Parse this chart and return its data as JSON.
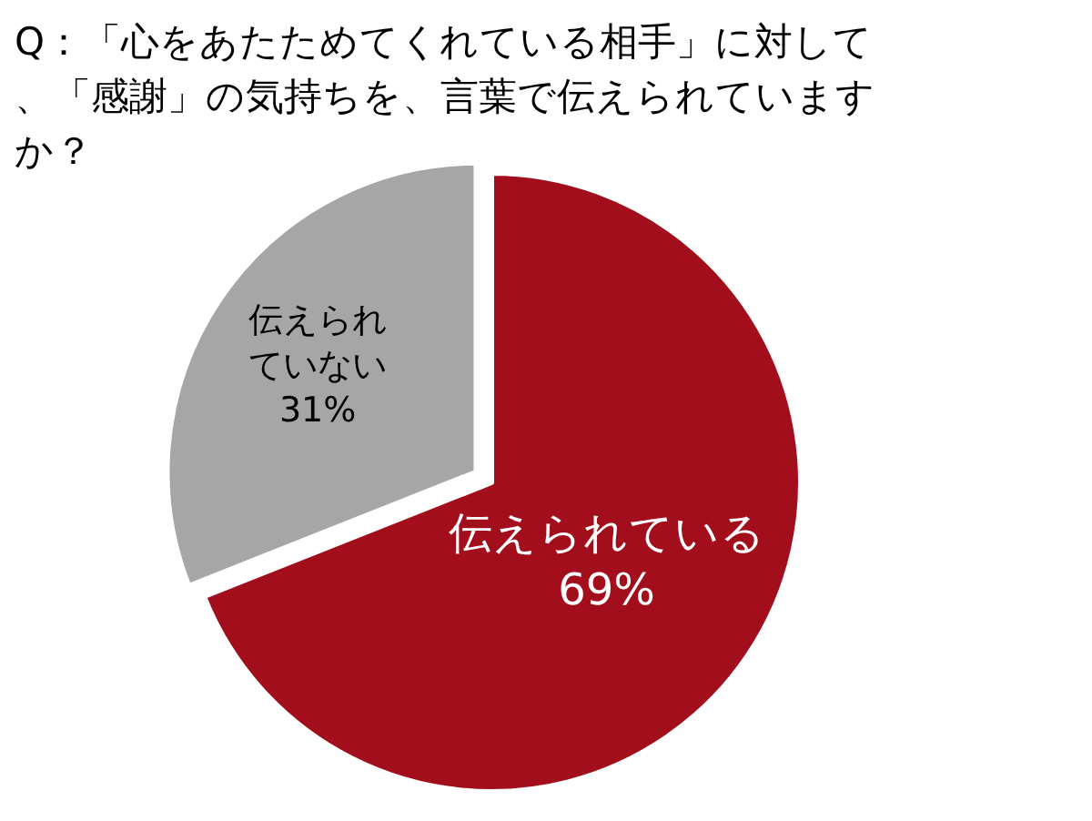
{
  "chart_data": {
    "type": "pie",
    "title": "Q：「心をあたためてくれている相手」に対して、「感謝」の気持ちを、言葉で伝えられていますか？",
    "categories": [
      "伝えられている",
      "伝えられていない"
    ],
    "values": [
      69,
      31
    ],
    "value_labels": [
      "69%",
      "31%"
    ],
    "colors": [
      "#a20e1b",
      "#a6a6a6"
    ],
    "legend": false
  }
}
